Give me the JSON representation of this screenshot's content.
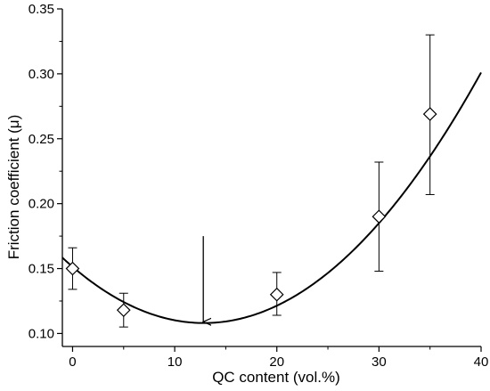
{
  "chart_data": {
    "type": "scatter",
    "title": "",
    "xlabel": "QC content (vol.%)",
    "ylabel": "Friction coefficient (μ)",
    "xlim": [
      -1,
      40
    ],
    "ylim": [
      0.09,
      0.35
    ],
    "x_ticks": [
      0,
      10,
      20,
      30,
      40
    ],
    "y_ticks": [
      0.1,
      0.15,
      0.2,
      0.25,
      0.3,
      0.35
    ],
    "x_tick_labels": [
      "0",
      "10",
      "20",
      "30",
      "40"
    ],
    "y_tick_labels": [
      "0.10",
      "0.15",
      "0.20",
      "0.25",
      "0.30",
      "0.35"
    ],
    "grid": false,
    "legend": "none",
    "series": [
      {
        "marker": "open-diamond",
        "points": [
          {
            "x": 0,
            "y": 0.15,
            "err_low": 0.134,
            "err_high": 0.166
          },
          {
            "x": 5,
            "y": 0.118,
            "err_low": 0.105,
            "err_high": 0.131
          },
          {
            "x": 20,
            "y": 0.13,
            "err_low": 0.114,
            "err_high": 0.147
          },
          {
            "x": 30,
            "y": 0.19,
            "err_low": 0.148,
            "err_high": 0.232
          },
          {
            "x": 35,
            "y": 0.269,
            "err_low": 0.207,
            "err_high": 0.33
          }
        ]
      }
    ],
    "fit_curve": {
      "type": "quadratic",
      "coefficients": {
        "a": 0.000262,
        "b": -0.00674,
        "c": 0.1514
      },
      "x_range": [
        -1,
        40
      ]
    },
    "annotation": {
      "type": "arrow",
      "x": 12.8,
      "y_from": 0.175,
      "y_to": 0.109
    }
  }
}
